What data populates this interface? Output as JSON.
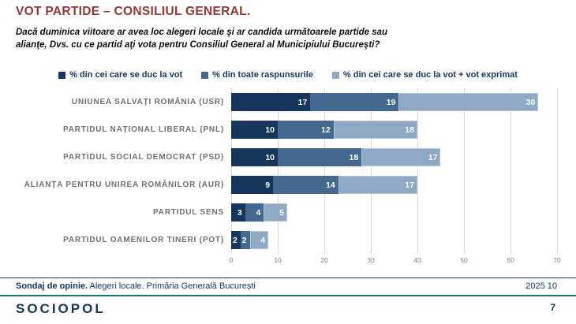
{
  "title": "VOT PARTIDE – CONSILIUL GENERAL.",
  "subtitle": "Dacă duminica viitoare ar avea loc alegeri locale şi ar candida următoarele partide sau alianţe, Dvs. cu ce partid aţi vota pentru Consiliul General al Municipiului Bucureşti?",
  "chart_data": {
    "type": "bar",
    "orientation": "horizontal",
    "stacked": true,
    "categories": [
      "UNIUNEA SALVAȚI ROMÂNIA (USR)",
      "PARTIDUL NAȚIONAL LIBERAL (PNL)",
      "PARTIDUL SOCIAL DEMOCRAT (PSD)",
      "ALIANȚA PENTRU UNIREA ROMÂNILOR (AUR)",
      "PARTIDUL SENS",
      "PARTIDUL OAMENILOR TINERI (POT)"
    ],
    "series": [
      {
        "name": "% din cei care se duc la vot",
        "color": "#17365d",
        "values": [
          17,
          10,
          10,
          9,
          3,
          2
        ]
      },
      {
        "name": "% din toate raspunsurile",
        "color": "#44688f",
        "values": [
          19,
          12,
          18,
          14,
          4,
          2
        ]
      },
      {
        "name": "% din cei care se duc la vot + vot exprimat",
        "color": "#8fa8c3",
        "values": [
          30,
          18,
          17,
          17,
          5,
          4
        ]
      }
    ],
    "totals": [
      66,
      40,
      45,
      40,
      12,
      8
    ],
    "xlim": [
      0,
      70
    ],
    "xticks": [
      0,
      10,
      20,
      30,
      40,
      50,
      60,
      70
    ],
    "grid": true,
    "legend_position": "top"
  },
  "footer": {
    "left_bold": "Sondaj de opinie.",
    "left_rest": " Alegeri locale. Primăria Generală București",
    "right": "2025 10",
    "logo": "SOCIOPOL",
    "page": "7"
  },
  "colors": {
    "title": "#943634",
    "navy": "#17365d",
    "medium_blue": "#44688f",
    "light_blue": "#8fa8c3",
    "label_gray": "#716f6f",
    "gridline": "#d9d9d9",
    "teal_rule": "#1b6e80"
  }
}
